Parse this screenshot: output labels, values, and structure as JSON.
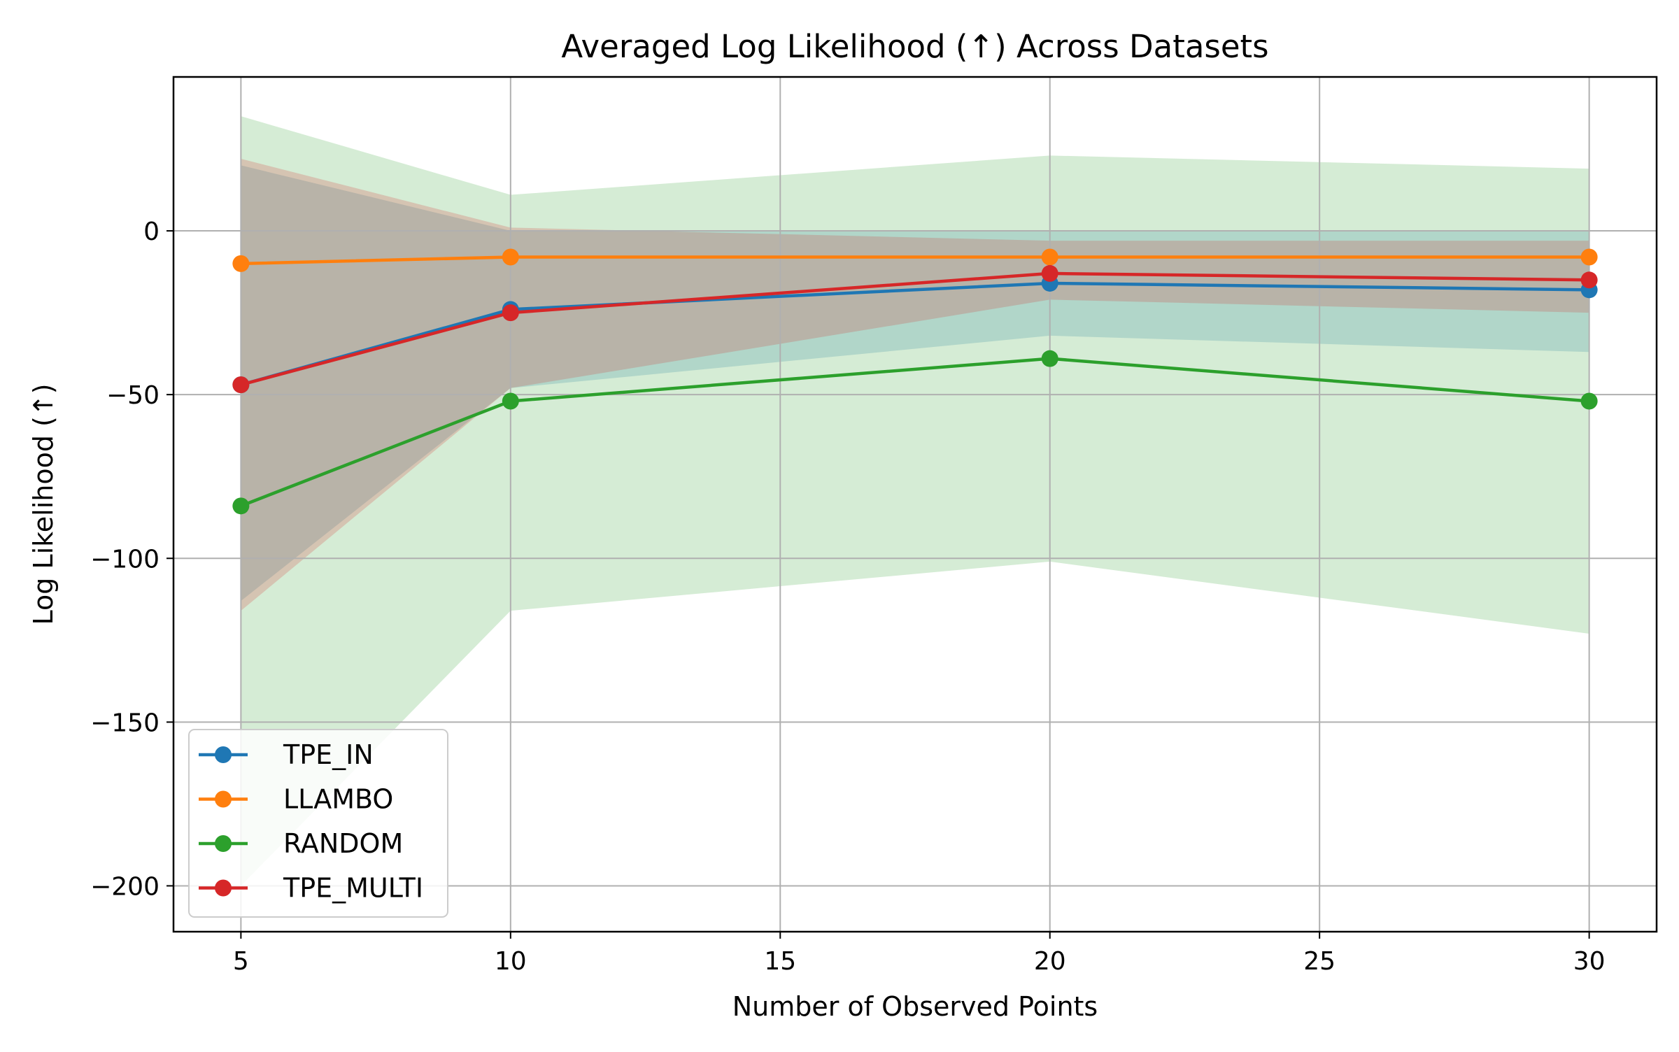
{
  "chart_data": {
    "type": "line",
    "title": "Averaged Log Likelihood (↑) Across Datasets",
    "xlabel": "Number of Observed Points",
    "ylabel": "Log Likelihood (↑)",
    "x": [
      5,
      10,
      20,
      30
    ],
    "xlim": [
      3.75,
      31.25
    ],
    "ylim": [
      -214,
      47
    ],
    "xticks": [
      5,
      10,
      15,
      20,
      25,
      30
    ],
    "xtick_labels": [
      "5",
      "10",
      "15",
      "20",
      "25",
      "30"
    ],
    "yticks": [
      0,
      -50,
      -100,
      -150,
      -200
    ],
    "ytick_labels": [
      "0",
      "−50",
      "−100",
      "−150",
      "−200"
    ],
    "grid": true,
    "legend_position": "lower-left",
    "series": [
      {
        "name": "TPE_IN",
        "color": "#1f77b4",
        "values": [
          -47,
          -24,
          -16,
          -18
        ],
        "band_lower": [
          -113,
          -48,
          -32,
          -37
        ],
        "band_upper": [
          20,
          0,
          0,
          0
        ]
      },
      {
        "name": "LLAMBO",
        "color": "#ff7f0e",
        "values": [
          -10,
          -8,
          -8,
          -8
        ],
        "band_lower": [
          -10,
          -8,
          -8,
          -8
        ],
        "band_upper": [
          -10,
          -8,
          -8,
          -8
        ]
      },
      {
        "name": "RANDOM",
        "color": "#2ca02c",
        "values": [
          -84,
          -52,
          -39,
          -52
        ],
        "band_lower": [
          -200,
          -116,
          -101,
          -123
        ],
        "band_upper": [
          35,
          11,
          23,
          19
        ]
      },
      {
        "name": "TPE_MULTI",
        "color": "#d62728",
        "values": [
          -47,
          -25,
          -13,
          -15
        ],
        "band_lower": [
          -116,
          -48,
          -21,
          -25
        ],
        "band_upper": [
          22,
          1,
          -3,
          -3
        ]
      }
    ]
  }
}
